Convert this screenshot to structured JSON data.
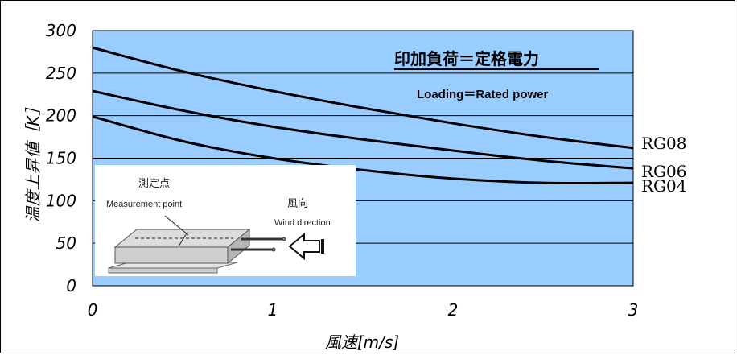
{
  "chart_data": {
    "type": "line",
    "title": "印加負荷＝定格電力",
    "subtitle": "Loading＝Rated power",
    "xlabel": "風速[m/s]",
    "ylabel": "温度上昇値［K］",
    "xlim": [
      0,
      3
    ],
    "ylim": [
      0,
      300
    ],
    "x_ticks": [
      "0",
      "1",
      "2",
      "3"
    ],
    "y_ticks": [
      "0",
      "50",
      "100",
      "150",
      "200",
      "250",
      "300"
    ],
    "grid": "horizontal",
    "plot_color": "#99ccff",
    "series": [
      {
        "name": "RG08",
        "x": [
          0,
          0.5,
          1,
          1.5,
          2,
          2.5,
          3
        ],
        "y": [
          280,
          252,
          229,
          209,
          191,
          175,
          162
        ]
      },
      {
        "name": "RG06",
        "x": [
          0,
          0.5,
          1,
          1.5,
          2,
          2.5,
          3
        ],
        "y": [
          229,
          206,
          187,
          172,
          159,
          147,
          138
        ]
      },
      {
        "name": "RG04",
        "x": [
          0,
          0.5,
          1,
          1.5,
          2,
          2.5,
          3
        ],
        "y": [
          199,
          170,
          150,
          136,
          126,
          121,
          121
        ]
      }
    ]
  },
  "inset": {
    "measurement_label_jp": "測定点",
    "measurement_label_en": "Measurement point",
    "wind_label_jp": "風向",
    "wind_label_en": "Wind direction"
  }
}
